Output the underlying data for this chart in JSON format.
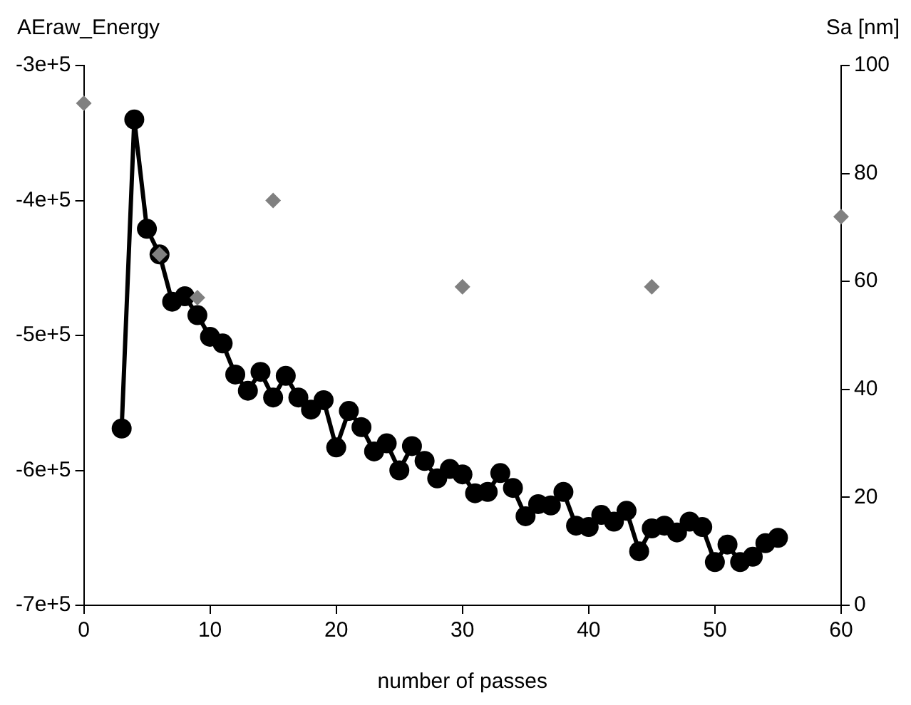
{
  "chart_data": {
    "type": "line",
    "xlabel": "number of passes",
    "ylabel": "AEraw_Energy",
    "y2label": "Sa [nm]",
    "grid": false,
    "legend": false,
    "xlim": [
      0,
      60
    ],
    "xticks": [
      0,
      10,
      20,
      30,
      40,
      50,
      60
    ],
    "ylim": [
      -700000,
      -300000
    ],
    "yticks": [
      {
        "value": -700000,
        "label": "-7e+5"
      },
      {
        "value": -600000,
        "label": "-6e+5"
      },
      {
        "value": -500000,
        "label": "-5e+5"
      },
      {
        "value": -400000,
        "label": "-4e+5"
      },
      {
        "value": -300000,
        "label": "-3e+5"
      }
    ],
    "y2lim": [
      0,
      100
    ],
    "y2ticks": [
      0,
      20,
      40,
      60,
      80,
      100
    ],
    "series": [
      {
        "type": "line",
        "color": "#000000",
        "marker": "circle",
        "line_style": "solid",
        "axis": "y",
        "x": [
          3,
          4,
          5,
          6,
          7,
          8,
          9,
          10,
          11,
          12,
          13,
          14,
          15,
          16,
          17,
          18,
          19,
          20,
          21,
          22,
          23,
          24,
          25,
          26,
          27,
          28,
          29,
          30,
          31,
          32,
          33,
          34,
          35,
          36,
          37,
          38,
          39,
          40,
          41,
          42,
          43,
          44,
          45,
          46,
          47,
          48,
          49,
          50,
          51,
          52,
          53,
          54,
          55
        ],
        "values": [
          -569000,
          -340000,
          -421000,
          -440000,
          -475000,
          -471000,
          -485000,
          -501000,
          -506000,
          -529000,
          -541000,
          -527000,
          -546000,
          -530000,
          -546000,
          -555000,
          -548000,
          -583000,
          -556000,
          -568000,
          -586000,
          -580000,
          -600000,
          -582000,
          -593000,
          -606000,
          -599000,
          -603000,
          -617000,
          -616000,
          -602000,
          -613000,
          -634000,
          -625000,
          -626000,
          -616000,
          -641000,
          -642000,
          -633000,
          -638000,
          -630000,
          -660000,
          -643000,
          -641000,
          -646000,
          -638000,
          -642000,
          -668000,
          -655000,
          -668000,
          -664000,
          -654000,
          -650000
        ]
      },
      {
        "type": "scatter",
        "color": "#808080",
        "marker": "diamond",
        "axis": "y2",
        "x": [
          0,
          6,
          9,
          15,
          30,
          45,
          60
        ],
        "values": [
          93,
          65,
          57,
          75,
          59,
          59,
          72
        ]
      }
    ]
  }
}
